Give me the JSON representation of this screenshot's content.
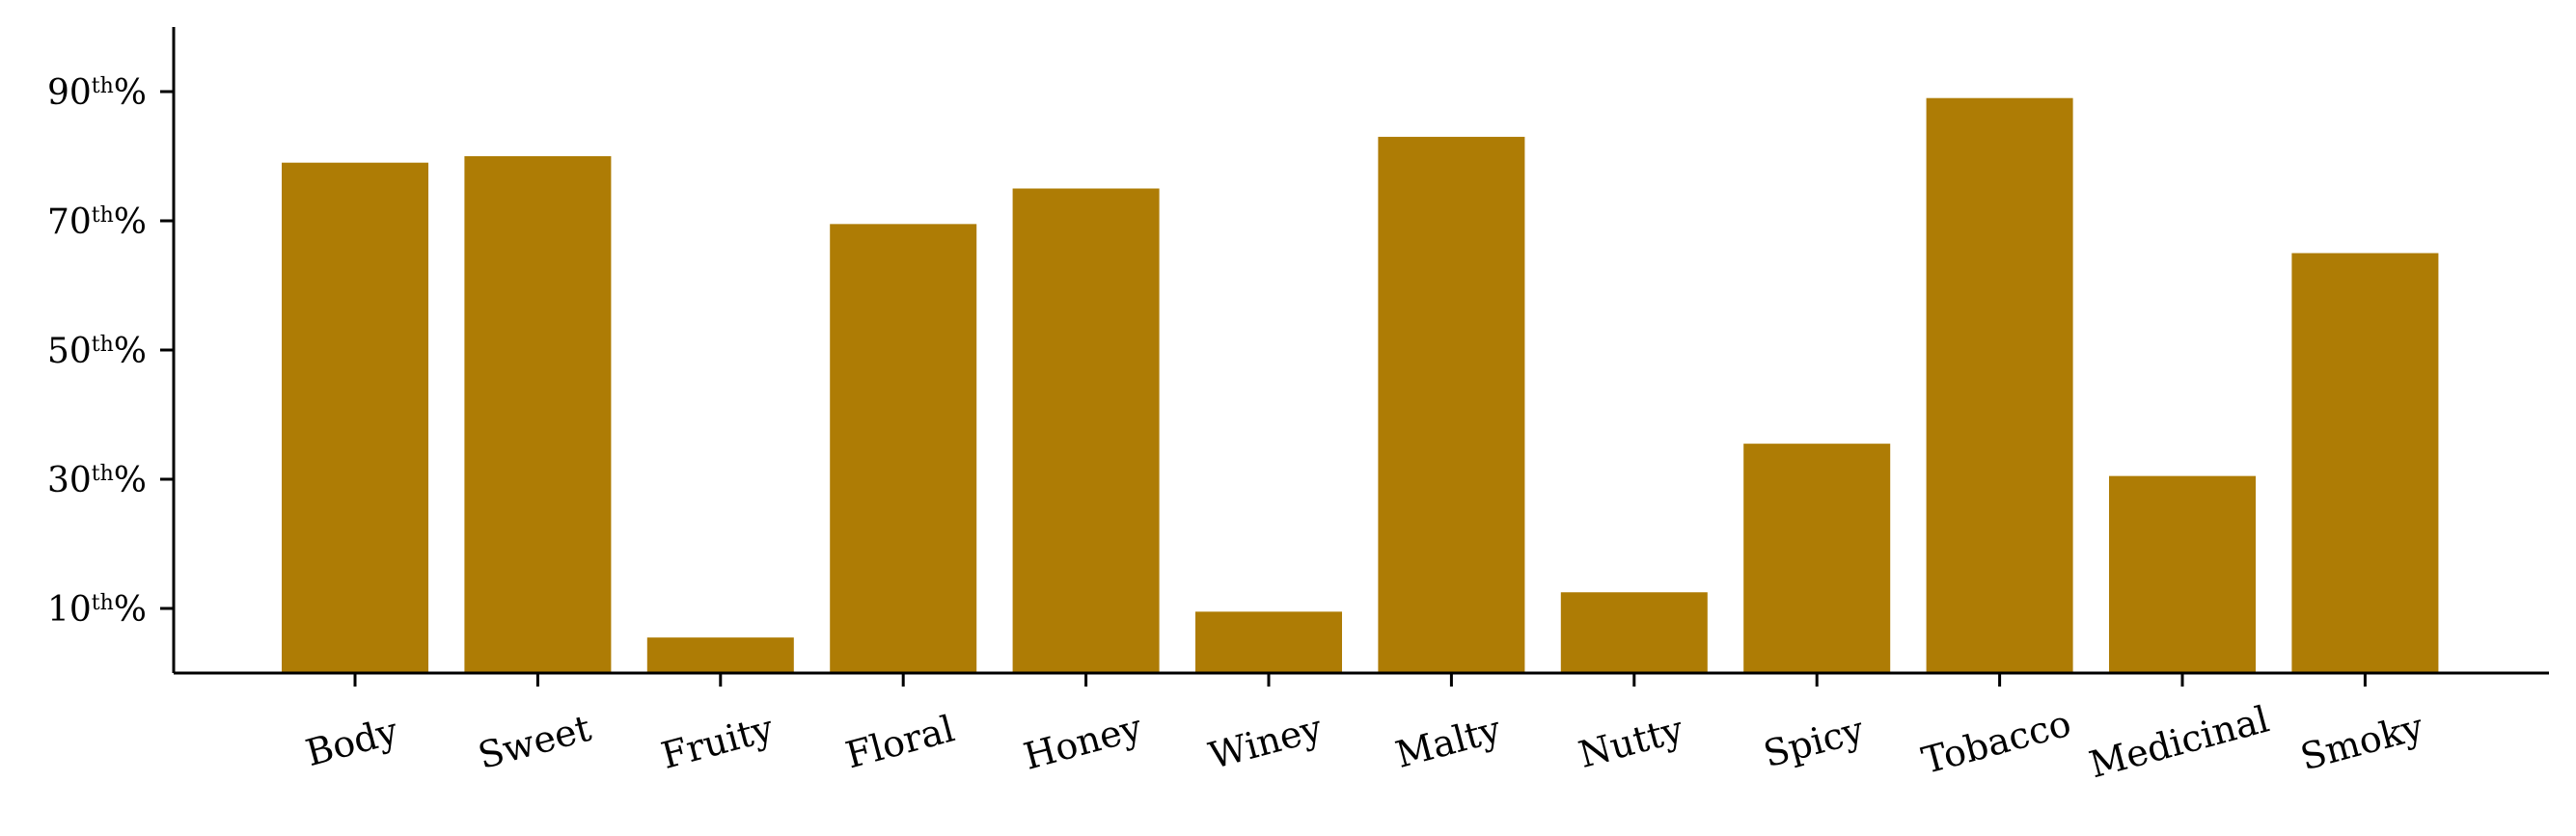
{
  "chart_data": {
    "type": "bar",
    "categories": [
      "Body",
      "Sweet",
      "Fruity",
      "Floral",
      "Honey",
      "Winey",
      "Malty",
      "Nutty",
      "Spicy",
      "Tobacco",
      "Medicinal",
      "Smoky"
    ],
    "values": [
      79,
      80,
      5.5,
      69.5,
      75,
      9.5,
      83,
      12.5,
      35.5,
      89,
      30.5,
      65
    ],
    "bar_color": "#ae7c05",
    "ylim": [
      0,
      100
    ],
    "y_ticks": [
      {
        "value": 10,
        "num": "10",
        "sup": "th",
        "suffix": "%"
      },
      {
        "value": 30,
        "num": "30",
        "sup": "th",
        "suffix": "%"
      },
      {
        "value": 50,
        "num": "50",
        "sup": "th",
        "suffix": "%"
      },
      {
        "value": 70,
        "num": "70",
        "sup": "th",
        "suffix": "%"
      },
      {
        "value": 90,
        "num": "90",
        "sup": "th",
        "suffix": "%"
      }
    ],
    "xlabel": "",
    "ylabel": "",
    "grid": false
  }
}
